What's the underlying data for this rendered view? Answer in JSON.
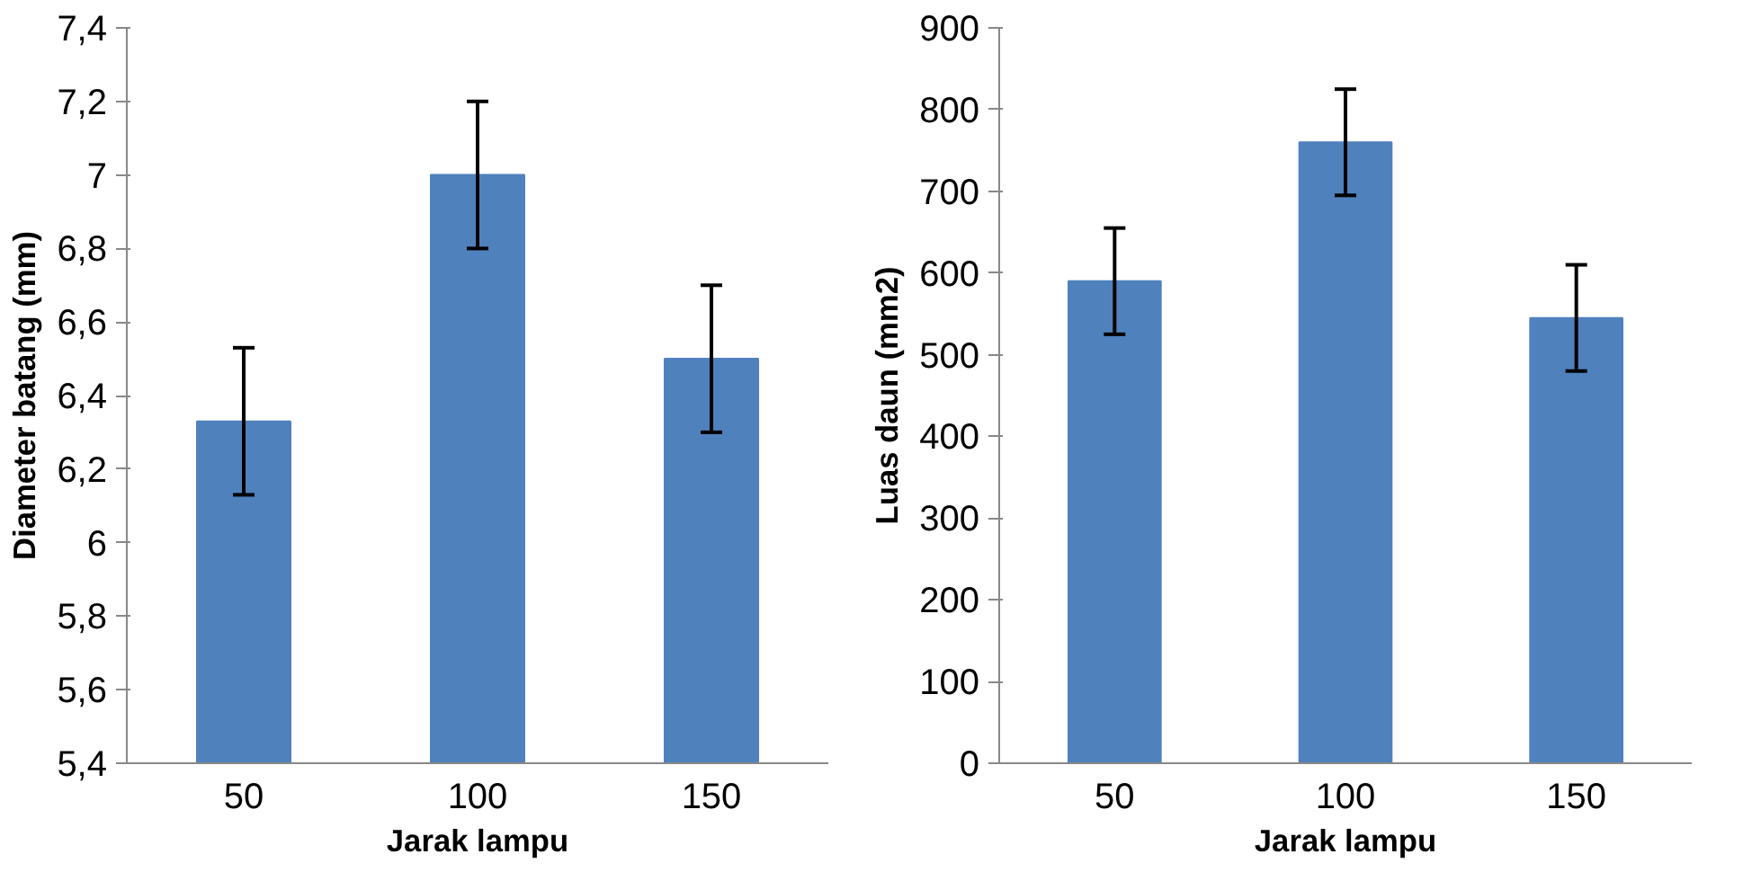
{
  "chart_data": [
    {
      "type": "bar",
      "xlabel": "Jarak lampu",
      "ylabel": "Diameter batang (mm)",
      "categories": [
        "50",
        "100",
        "150"
      ],
      "values": [
        6.33,
        7.0,
        6.5
      ],
      "errors": [
        0.2,
        0.2,
        0.2
      ],
      "color": "#4f81bd",
      "ylim": [
        5.4,
        7.4
      ],
      "yticks": [
        {
          "value": 5.4,
          "label": "5,4"
        },
        {
          "value": 5.6,
          "label": "5,6"
        },
        {
          "value": 5.8,
          "label": "5,8"
        },
        6,
        {
          "value": 6.2,
          "label": "6,2"
        },
        {
          "value": 6.4,
          "label": "6,4"
        },
        {
          "value": 6.6,
          "label": "6,6"
        },
        {
          "value": 6.8,
          "label": "6,8"
        },
        7,
        {
          "value": 7.2,
          "label": "7,2"
        },
        {
          "value": 7.4,
          "label": "7,4"
        }
      ],
      "grid": false
    },
    {
      "type": "bar",
      "xlabel": "Jarak lampu",
      "ylabel": "Luas daun (mm2)",
      "categories": [
        "50",
        "100",
        "150"
      ],
      "values": [
        590,
        760,
        545
      ],
      "errors": [
        65,
        65,
        65
      ],
      "color": "#4f81bd",
      "ylim": [
        0,
        900
      ],
      "yticks": [
        0,
        100,
        200,
        300,
        400,
        500,
        600,
        700,
        800,
        900
      ],
      "grid": false
    }
  ]
}
